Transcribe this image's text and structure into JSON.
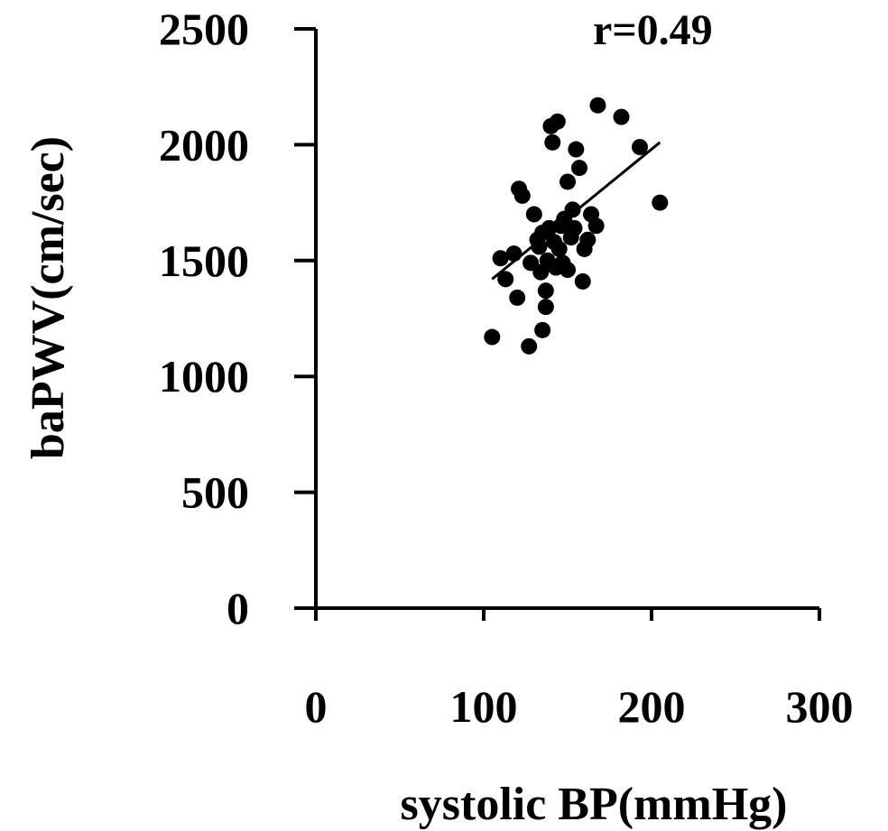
{
  "chart_data": {
    "type": "scatter",
    "title": "",
    "annotation": "r=0.49",
    "xlabel": "systolic BP(mmHg)",
    "ylabel": "baPWV(cm/sec)",
    "xlim": [
      0,
      300
    ],
    "ylim": [
      0,
      2500
    ],
    "xticks": [
      "0",
      "100",
      "200",
      "300"
    ],
    "yticks": [
      "0",
      "500",
      "1000",
      "1500",
      "2000",
      "2500"
    ],
    "grid": false,
    "legend": "none",
    "marker_color": "#000000",
    "series": [
      {
        "points": [
          [
            105,
            1170
          ],
          [
            127,
            1130
          ],
          [
            135,
            1200
          ],
          [
            110,
            1510
          ],
          [
            113,
            1420
          ],
          [
            118,
            1530
          ],
          [
            120,
            1340
          ],
          [
            121,
            1810
          ],
          [
            123,
            1780
          ],
          [
            128,
            1490
          ],
          [
            130,
            1700
          ],
          [
            132,
            1590
          ],
          [
            133,
            1560
          ],
          [
            134,
            1450
          ],
          [
            135,
            1620
          ],
          [
            137,
            1300
          ],
          [
            137,
            1370
          ],
          [
            138,
            1500
          ],
          [
            139,
            1640
          ],
          [
            140,
            2080
          ],
          [
            141,
            2010
          ],
          [
            142,
            1580
          ],
          [
            143,
            1470
          ],
          [
            144,
            2100
          ],
          [
            145,
            1550
          ],
          [
            146,
            1650
          ],
          [
            147,
            1490
          ],
          [
            148,
            1680
          ],
          [
            150,
            1460
          ],
          [
            150,
            1840
          ],
          [
            152,
            1600
          ],
          [
            153,
            1720
          ],
          [
            154,
            1640
          ],
          [
            155,
            1980
          ],
          [
            157,
            1900
          ],
          [
            159,
            1410
          ],
          [
            160,
            1550
          ],
          [
            162,
            1590
          ],
          [
            164,
            1700
          ],
          [
            167,
            1650
          ],
          [
            168,
            2170
          ],
          [
            182,
            2120
          ],
          [
            193,
            1990
          ],
          [
            205,
            1750
          ]
        ],
        "trendline": [
          [
            105,
            1420
          ],
          [
            205,
            2010
          ]
        ]
      }
    ]
  }
}
